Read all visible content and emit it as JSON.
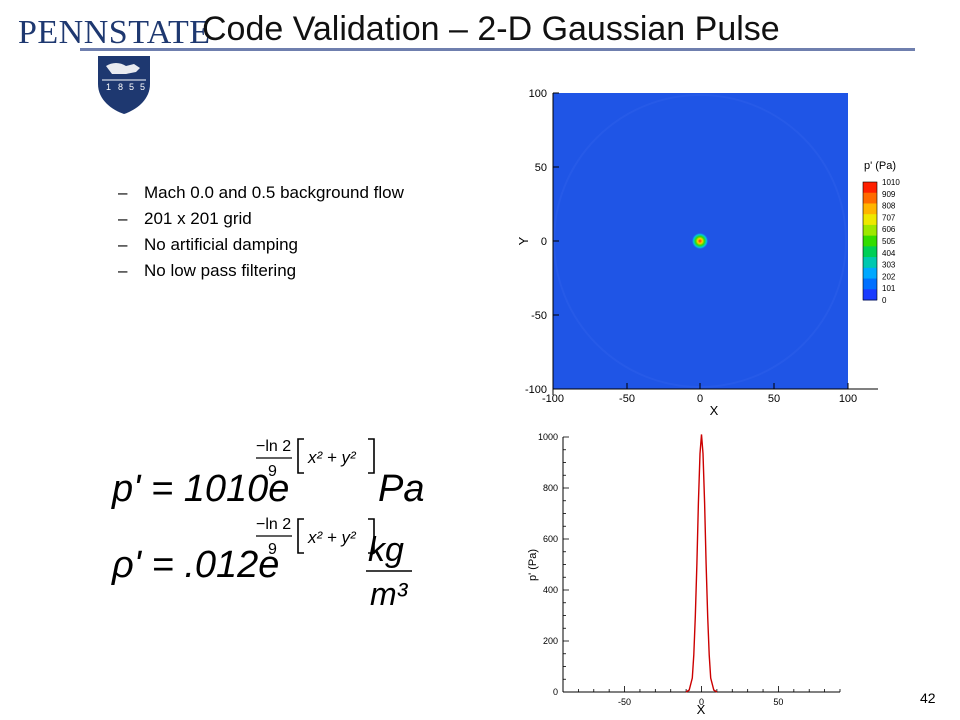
{
  "header": {
    "logo_text": "PENNSTATE",
    "logo_year_digits": [
      "1",
      "8",
      "5",
      "5"
    ],
    "title": "Code Validation – 2-D Gaussian Pulse"
  },
  "bullets": [
    "Mach 0.0 and 0.5 background flow",
    "201 x 201 grid",
    "No artificial damping",
    "No low pass filtering"
  ],
  "equations": {
    "pressure": {
      "lhs": "p' = 1010e",
      "exp_numerator": "−ln 2",
      "exp_denominator": "9",
      "exp_bracket": "x² + y²",
      "unit": "Pa"
    },
    "density": {
      "lhs": "ρ' = .012e",
      "exp_numerator": "−ln 2",
      "exp_denominator": "9",
      "exp_bracket": "x² + y²",
      "unit_numerator": "kg",
      "unit_denominator": "m³"
    }
  },
  "contour_plot": {
    "x_label": "X",
    "y_label": "Y",
    "x_ticks": [
      "-100",
      "-50",
      "0",
      "50",
      "100"
    ],
    "y_ticks": [
      "100",
      "50",
      "0",
      "-50",
      "-100"
    ],
    "legend_title": "p' (Pa)",
    "legend_levels": [
      "1010",
      "909",
      "808",
      "707",
      "606",
      "505",
      "404",
      "303",
      "202",
      "101",
      "0"
    ],
    "legend_colors": [
      "#ff2000",
      "#ff6a00",
      "#ffb400",
      "#eee800",
      "#9de800",
      "#33dd00",
      "#00cf55",
      "#00c8b0",
      "#00a8ff",
      "#0070ff",
      "#1a3cff"
    ],
    "background_color": "#1f55e6",
    "pulse_center": [
      0,
      0
    ]
  },
  "chart_data": {
    "type": "line",
    "x": [
      -10,
      -8,
      -6,
      -5,
      -4,
      -3,
      -2,
      -1,
      0,
      1,
      2,
      3,
      4,
      5,
      6,
      8,
      10
    ],
    "series": [
      {
        "values": [
          0,
          8,
          55,
          146,
          295,
          504,
          742,
          935,
          1010,
          935,
          742,
          504,
          295,
          146,
          55,
          8,
          0
        ],
        "color": "#cc0000"
      }
    ],
    "xlabel": "X",
    "ylabel": "p' (Pa)",
    "xlim": [
      -90,
      90
    ],
    "ylim": [
      0,
      1000
    ],
    "x_ticks": [
      -50,
      0,
      50
    ],
    "y_ticks": [
      0,
      200,
      400,
      600,
      800,
      1000
    ]
  },
  "page_number": "42"
}
